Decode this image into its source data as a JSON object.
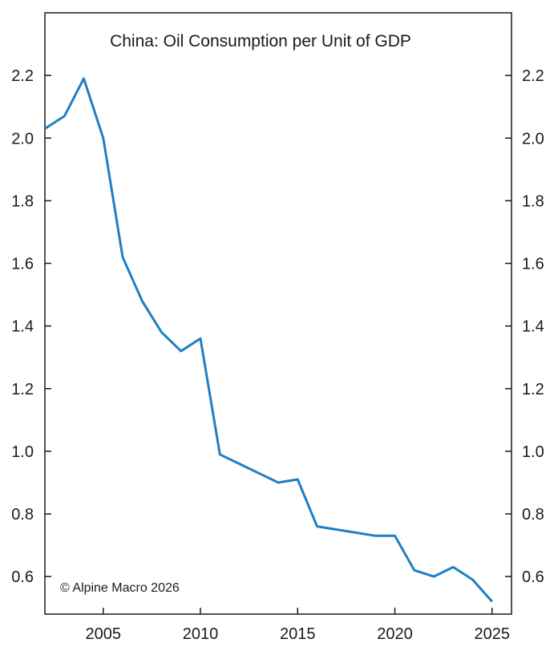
{
  "chart_data": {
    "type": "line",
    "title": "China: Oil Consumption per Unit of GDP",
    "xlabel": "",
    "ylabel": "",
    "xlim": [
      2002,
      2026
    ],
    "ylim": [
      0.48,
      2.4
    ],
    "x_ticks": [
      2005,
      2010,
      2015,
      2020,
      2025
    ],
    "y_ticks": [
      0.6,
      0.8,
      1.0,
      1.2,
      1.4,
      1.6,
      1.8,
      2.0,
      2.2
    ],
    "y_tick_labels": [
      "0.6",
      "0.8",
      "1.0",
      "1.2",
      "1.4",
      "1.6",
      "1.8",
      "2.0",
      "2.2"
    ],
    "grid": false,
    "legend": "none",
    "series": [
      {
        "color": "#1f7fc4",
        "x": [
          2002,
          2003,
          2004,
          2005,
          2006,
          2007,
          2008,
          2009,
          2010,
          2011,
          2012,
          2013,
          2014,
          2015,
          2016,
          2017,
          2018,
          2019,
          2020,
          2021,
          2022,
          2023,
          2024,
          2025
        ],
        "values": [
          2.03,
          2.07,
          2.19,
          2.0,
          1.62,
          1.48,
          1.38,
          1.32,
          1.36,
          0.99,
          0.96,
          0.93,
          0.9,
          0.91,
          0.76,
          0.75,
          0.74,
          0.73,
          0.73,
          0.62,
          0.6,
          0.63,
          0.59,
          0.52
        ]
      }
    ],
    "annotation": "© Alpine Macro 2026"
  }
}
